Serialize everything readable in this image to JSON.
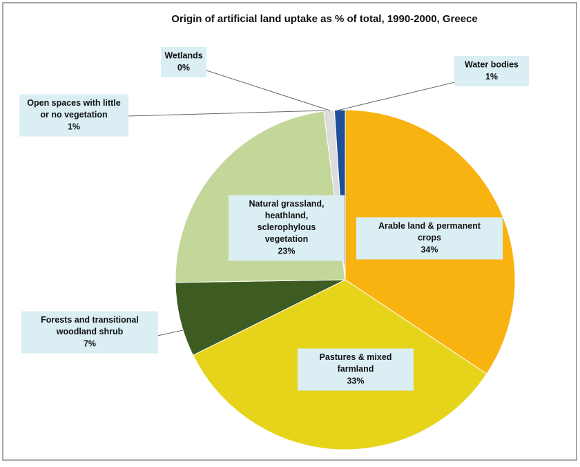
{
  "chart_data": {
    "type": "pie",
    "title": "Origin of artificial land uptake as % of total, 1990-2000, Greece",
    "categories": [
      "Arable land & permanent\ncrops",
      "Pastures & mixed\nfarmland",
      "Forests and transitional\nwoodland shrub",
      "Natural grassland,\nheathland,\nsclerophylous\nvegetation",
      "Open spaces with little\nor no vegetation",
      "Wetlands",
      "Water bodies"
    ],
    "values": [
      34,
      33,
      7,
      23,
      1,
      0,
      1
    ],
    "value_labels": [
      "34%",
      "33%",
      "7%",
      "23%",
      "1%",
      "0%",
      "1%"
    ],
    "colors": [
      "#f9b310",
      "#e6d41a",
      "#3e5b22",
      "#c4d79b",
      "#dcdcdc",
      "#8db3e2",
      "#1f4e9b"
    ]
  }
}
